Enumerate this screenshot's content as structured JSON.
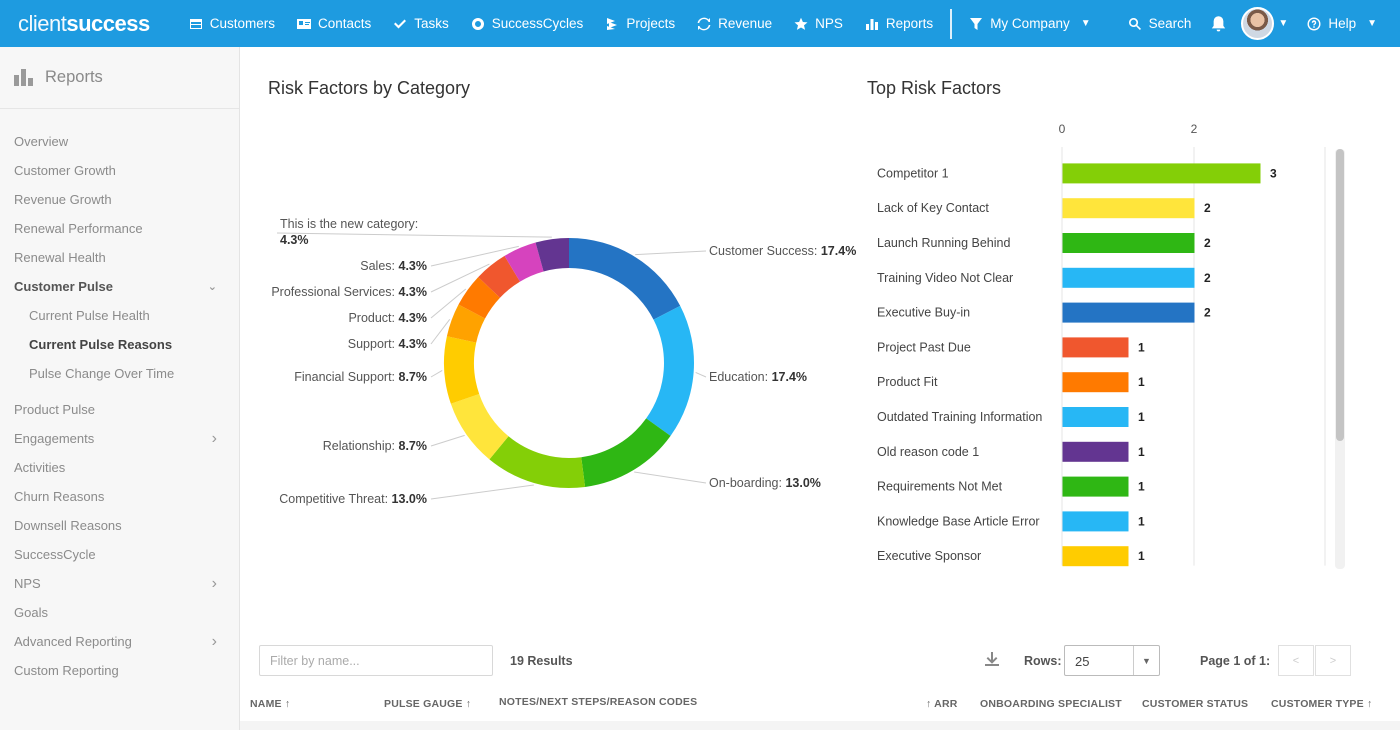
{
  "topnav": {
    "logo_light": "client",
    "logo_bold": "success",
    "items": [
      {
        "label": "Customers",
        "icon": "table-icon"
      },
      {
        "label": "Contacts",
        "icon": "contact-card-icon"
      },
      {
        "label": "Tasks",
        "icon": "check-icon"
      },
      {
        "label": "SuccessCycles",
        "icon": "cycle-icon"
      },
      {
        "label": "Projects",
        "icon": "layers-icon"
      },
      {
        "label": "Revenue",
        "icon": "refresh-icon"
      },
      {
        "label": "NPS",
        "icon": "star-icon"
      },
      {
        "label": "Reports",
        "icon": "bar-chart-icon"
      }
    ],
    "company_filter": "My Company",
    "search": "Search",
    "help": "Help"
  },
  "sidebar": {
    "title": "Reports",
    "items": [
      {
        "label": "Overview"
      },
      {
        "label": "Customer Growth"
      },
      {
        "label": "Revenue Growth"
      },
      {
        "label": "Renewal Performance"
      },
      {
        "label": "Renewal Health"
      },
      {
        "label": "Customer Pulse",
        "active": true,
        "chevron": "down"
      },
      {
        "label": "Current Pulse Health",
        "sub": true
      },
      {
        "label": "Current Pulse Reasons",
        "sub": true,
        "active": true
      },
      {
        "label": "Pulse Change Over Time",
        "sub": true
      },
      {
        "label": "Product Pulse"
      },
      {
        "label": "Engagements",
        "chevron": "right"
      },
      {
        "label": "Activities"
      },
      {
        "label": "Churn Reasons"
      },
      {
        "label": "Downsell Reasons"
      },
      {
        "label": "SuccessCycle"
      },
      {
        "label": "NPS",
        "chevron": "right"
      },
      {
        "label": "Goals"
      },
      {
        "label": "Advanced Reporting",
        "chevron": "right"
      },
      {
        "label": "Custom Reporting"
      }
    ]
  },
  "chart_data": [
    {
      "type": "pie",
      "title": "Risk Factors by Category",
      "slices": [
        {
          "label": "Customer Success",
          "value": 17.4,
          "display": "17.4%",
          "color": "#2474c4"
        },
        {
          "label": "Education",
          "value": 17.4,
          "display": "17.4%",
          "color": "#27b7f5"
        },
        {
          "label": "On-boarding",
          "value": 13.0,
          "display": "13.0%",
          "color": "#2fb714"
        },
        {
          "label": "Competitive Threat",
          "value": 13.0,
          "display": "13.0%",
          "color": "#84cf07"
        },
        {
          "label": "Relationship",
          "value": 8.7,
          "display": "8.7%",
          "color": "#ffe53b"
        },
        {
          "label": "Financial Support",
          "value": 8.7,
          "display": "8.7%",
          "color": "#ffcc00"
        },
        {
          "label": "Support",
          "value": 4.3,
          "display": "4.3%",
          "color": "#ffa200"
        },
        {
          "label": "Product",
          "value": 4.3,
          "display": "4.3%",
          "color": "#ff7a00"
        },
        {
          "label": "Professional Services",
          "value": 4.3,
          "display": "4.3%",
          "color": "#f0572e"
        },
        {
          "label": "Sales",
          "value": 4.3,
          "display": "4.3%",
          "color": "#d643be"
        },
        {
          "label": "This is the new category:",
          "value": 4.3,
          "display": "4.3%",
          "color": "#633591"
        }
      ]
    },
    {
      "type": "bar",
      "orientation": "horizontal",
      "title": "Top Risk Factors",
      "xlim": [
        0,
        3
      ],
      "xticks": [
        0,
        2
      ],
      "categories": [
        "Competitor 1",
        "Lack of Key Contact",
        "Launch Running Behind",
        "Training Video Not Clear",
        "Executive Buy-in",
        "Project Past Due",
        "Product Fit",
        "Outdated Training Information",
        "Old reason code 1",
        "Requirements Not Met",
        "Knowledge Base Article Error",
        "Executive Sponsor"
      ],
      "values": [
        3,
        2,
        2,
        2,
        2,
        1,
        1,
        1,
        1,
        1,
        1,
        1
      ],
      "colors": [
        "#84cf07",
        "#ffe53b",
        "#2fb714",
        "#27b7f5",
        "#2474c4",
        "#f0572e",
        "#ff7a00",
        "#27b7f5",
        "#633591",
        "#2fb714",
        "#27b7f5",
        "#ffcc00"
      ]
    }
  ],
  "table": {
    "filter_placeholder": "Filter by name...",
    "results": "19 Results",
    "rows_label": "Rows:",
    "rows_value": "25",
    "page_label": "Page 1 of 1:",
    "prev": "<",
    "next": ">",
    "columns": [
      "NAME ↑",
      "PULSE GAUGE ↑",
      "NOTES/NEXT STEPS/REASON CODES",
      "↑ ARR",
      "ONBOARDING SPECIALIST",
      "CUSTOMER STATUS",
      "CUSTOMER TYPE ↑"
    ]
  }
}
